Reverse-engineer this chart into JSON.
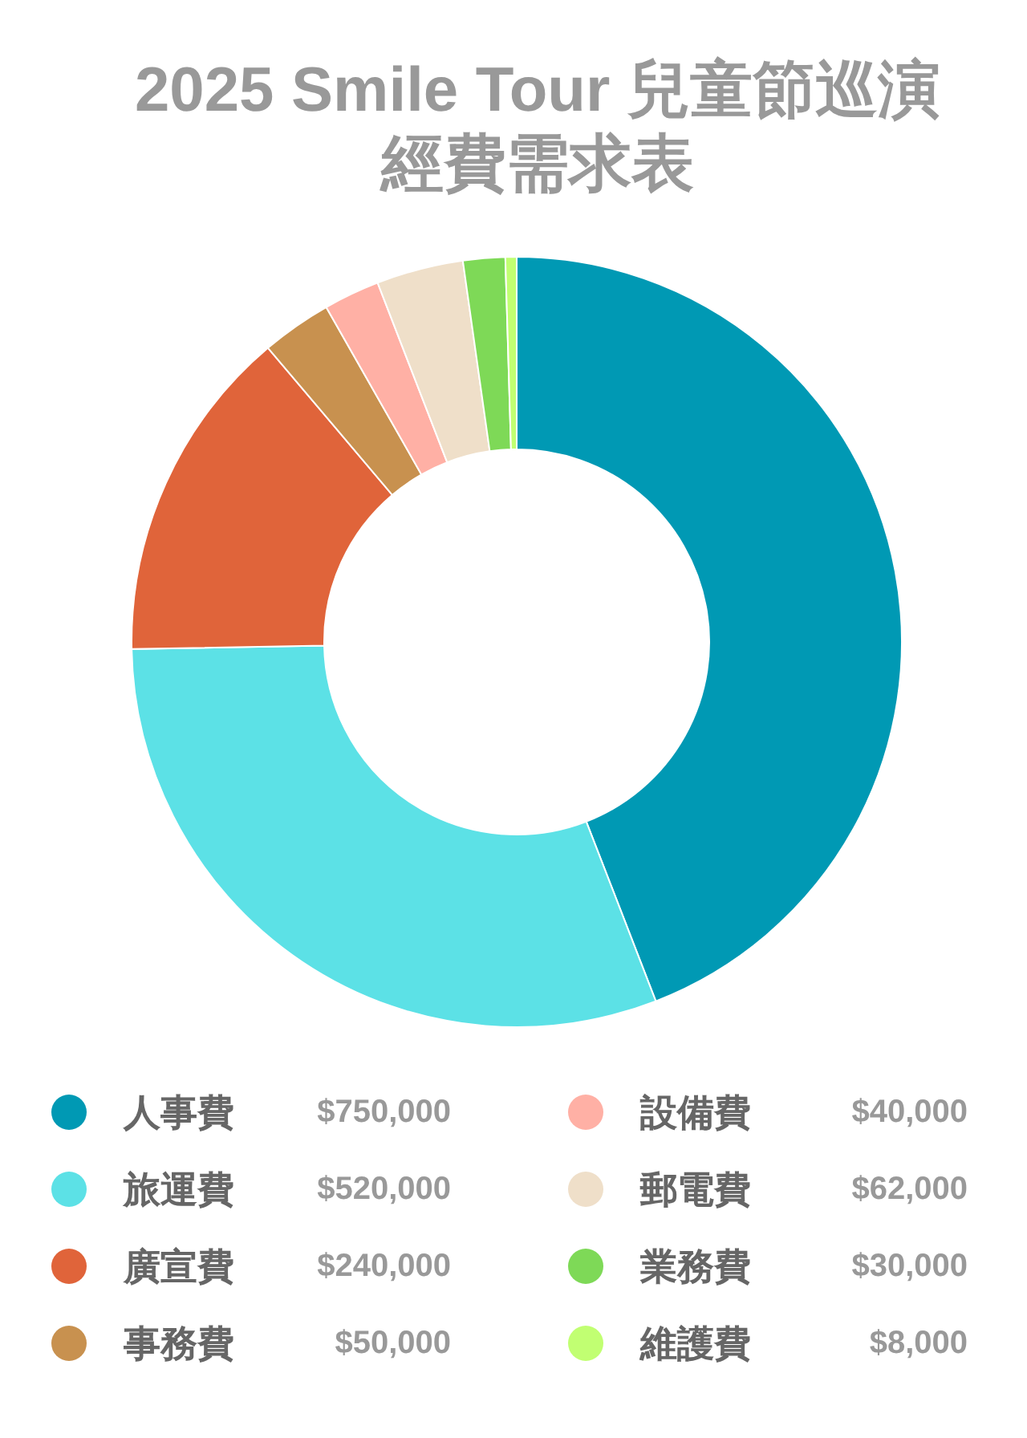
{
  "chart_data": {
    "type": "donut",
    "title": "2025 Smile Tour 兒童節巡演經費需求表",
    "categories": [
      "人事費",
      "旅運費",
      "廣宣費",
      "事務費",
      "設備費",
      "郵電費",
      "業務費",
      "維護費"
    ],
    "values": [
      750000,
      520000,
      240000,
      50000,
      40000,
      62000,
      30000,
      8000
    ],
    "value_labels": [
      "$750,000",
      "$520,000",
      "$240,000",
      "$50,000",
      "$40,000",
      "$62,000",
      "$30,000",
      "$8,000"
    ],
    "colors": [
      "#0099b4",
      "#5ce1e6",
      "#e0643a",
      "#c8914f",
      "#ffb0a5",
      "#efdfc9",
      "#7ed957",
      "#c1ff72"
    ],
    "legend": "bottom"
  }
}
